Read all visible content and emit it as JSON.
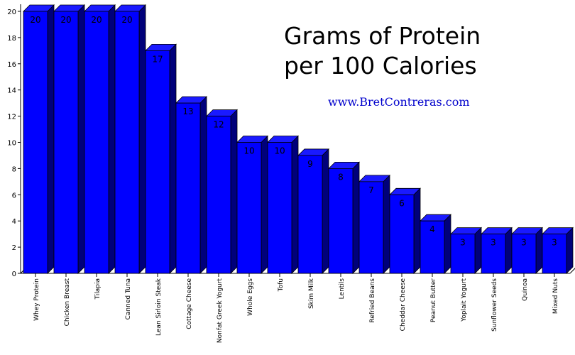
{
  "chart_data": {
    "type": "bar",
    "title_line1": "Grams of Protein",
    "title_line2": "per 100 Calories",
    "subtitle": "www.BretContreras.com",
    "xlabel": "",
    "ylabel": "",
    "ylim": [
      0,
      20
    ],
    "yticks": [
      0,
      2,
      4,
      6,
      8,
      10,
      12,
      14,
      16,
      18,
      20
    ],
    "grid": false,
    "categories": [
      "Whey Protein",
      "Chicken Breast",
      "Tilapia",
      "Canned Tuna",
      "Lean Sirloin Steak",
      "Cottage Cheese",
      "Nonfat Greek Yogurt",
      "Whole Eggs",
      "Tofu",
      "Skim Milk",
      "Lentils",
      "Refried Beans",
      "Cheddar Cheese",
      "Peanut Butter",
      "Yoplait Yogurt",
      "Sunflower Seeds",
      "Quinoa",
      "Mixed Nuts"
    ],
    "values": [
      20,
      20,
      20,
      20,
      17,
      13,
      12,
      10,
      10,
      9,
      8,
      7,
      6,
      4,
      3,
      3,
      3,
      3
    ],
    "colors": {
      "bar_front": "#0000ff",
      "bar_top": "#1a1aff",
      "bar_side": "#00007a",
      "label": "#000000"
    }
  }
}
